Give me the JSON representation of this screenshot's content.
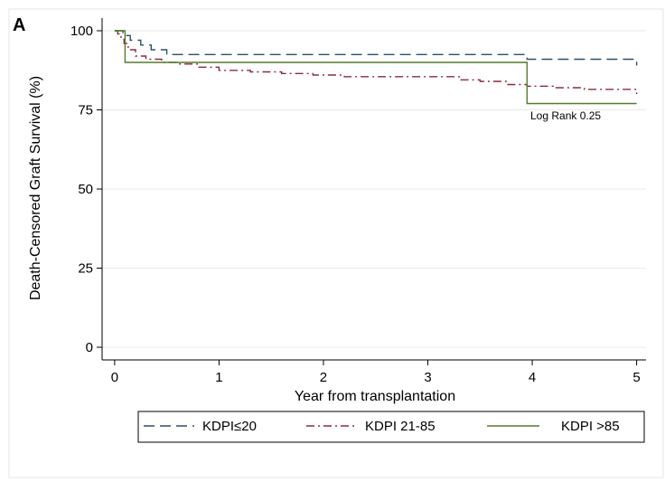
{
  "panel_label": "A",
  "chart_data": {
    "type": "line",
    "title": "",
    "xlabel": "Year from transplantation",
    "ylabel": "Death-Censored Graft Survival (%)",
    "xlim": [
      0,
      5
    ],
    "ylim": [
      0,
      100
    ],
    "xticks": [
      0,
      1,
      2,
      3,
      4,
      5
    ],
    "yticks": [
      0,
      25,
      50,
      75,
      100
    ],
    "grid": true,
    "step": true,
    "legend_position": "bottom",
    "annotation": {
      "text": "Log Rank  0.25",
      "x": 4.5,
      "y": 75
    },
    "series": [
      {
        "name": "KDPI≤20",
        "color": "#2e4f6e",
        "dash": "long-dash",
        "x": [
          0,
          0.08,
          0.15,
          0.25,
          0.35,
          0.5,
          1,
          2,
          3,
          3.95,
          4.5,
          5
        ],
        "y": [
          100,
          98.5,
          97,
          95.5,
          94,
          92.5,
          92.5,
          92.5,
          92.5,
          91,
          91,
          89
        ]
      },
      {
        "name": "KDPI 21-85",
        "color": "#8c2b3c",
        "dash": "dash-dot",
        "x": [
          0,
          0.03,
          0.06,
          0.09,
          0.13,
          0.2,
          0.3,
          0.45,
          0.6,
          0.8,
          1,
          1.3,
          1.6,
          1.9,
          2.2,
          2.6,
          3,
          3.3,
          3.5,
          3.75,
          3.95,
          4.2,
          4.5,
          4.8,
          5
        ],
        "y": [
          100,
          99,
          98,
          96,
          94,
          92,
          91,
          90,
          89.5,
          88.5,
          87.5,
          87,
          86.5,
          86,
          85.5,
          85.5,
          85.5,
          84.5,
          84,
          83,
          82.5,
          82,
          81.5,
          81.5,
          80
        ]
      },
      {
        "name": "KDPI >85",
        "color": "#557a2e",
        "dash": "solid",
        "x": [
          0,
          0.1,
          3.95,
          5
        ],
        "y": [
          100,
          90,
          77,
          77
        ]
      }
    ]
  }
}
